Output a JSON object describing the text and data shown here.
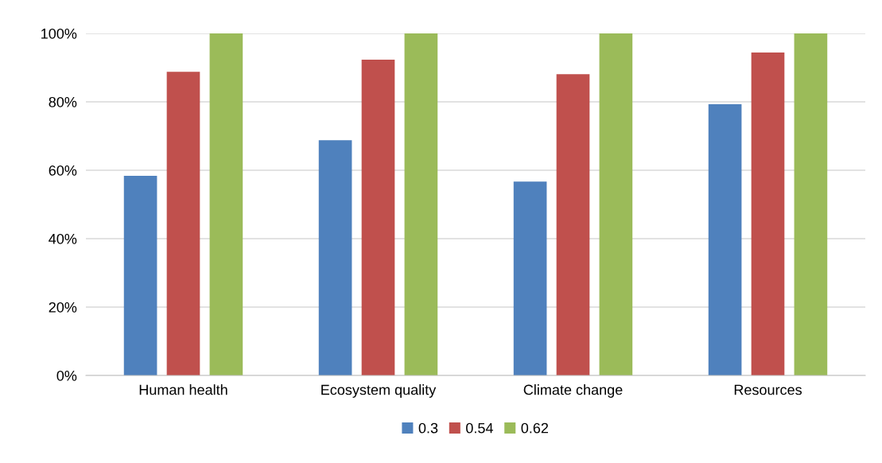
{
  "chart_data": {
    "type": "bar",
    "categories": [
      "Human health",
      "Ecosystem quality",
      "Climate change",
      "Resources"
    ],
    "series": [
      {
        "name": "0.3",
        "color": "#4f81bd",
        "values": [
          58.4,
          68.8,
          56.7,
          79.3
        ]
      },
      {
        "name": "0.54",
        "color": "#c0504d",
        "values": [
          88.8,
          92.3,
          88.1,
          94.4
        ]
      },
      {
        "name": "0.62",
        "color": "#9bbb59",
        "values": [
          100,
          100,
          100,
          100
        ]
      }
    ],
    "ylim": [
      0,
      100
    ],
    "yticks": [
      {
        "value": 0,
        "label": "0%"
      },
      {
        "value": 20,
        "label": "20%"
      },
      {
        "value": 40,
        "label": "40%"
      },
      {
        "value": 60,
        "label": "60%"
      },
      {
        "value": 80,
        "label": "80%"
      },
      {
        "value": 100,
        "label": "100%"
      }
    ],
    "grid": "y",
    "legend": "bottom"
  }
}
